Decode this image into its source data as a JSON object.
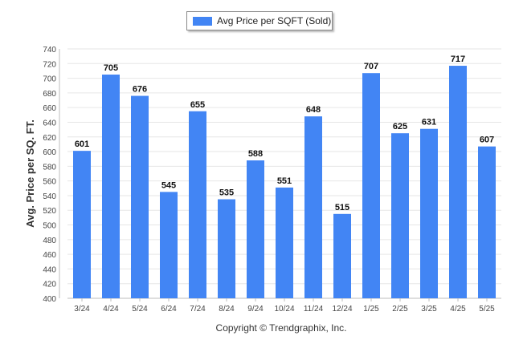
{
  "chart_data": {
    "type": "bar",
    "categories": [
      "3/24",
      "4/24",
      "5/24",
      "6/24",
      "7/24",
      "8/24",
      "9/24",
      "10/24",
      "11/24",
      "12/24",
      "1/25",
      "2/25",
      "3/25",
      "4/25",
      "5/25"
    ],
    "series": [
      {
        "name": "Avg Price per SQFT (Sold)",
        "values": [
          601,
          705,
          676,
          545,
          655,
          535,
          588,
          551,
          648,
          515,
          707,
          625,
          631,
          717,
          607
        ],
        "color": "#4285f4"
      }
    ],
    "ylabel": "Avg. Price per SQ. FT.",
    "xlabel": "",
    "ylim": [
      400,
      740
    ],
    "yticks": [
      400,
      420,
      440,
      460,
      480,
      500,
      520,
      540,
      560,
      580,
      600,
      620,
      640,
      660,
      680,
      700,
      720,
      740
    ],
    "grid": true,
    "legend_position": "top-center",
    "data_labels": true
  },
  "footer": {
    "copyright": "Copyright © Trendgraphix, Inc."
  }
}
